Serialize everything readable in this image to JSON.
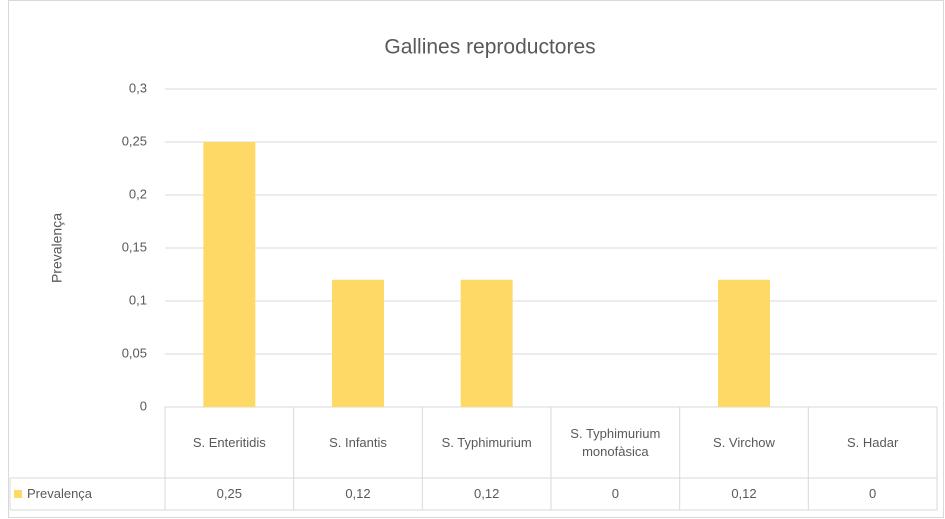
{
  "chart_data": {
    "type": "bar",
    "title": "Gallines reproductores",
    "ylabel": "Prevalença",
    "categories": [
      "S. Enteritidis",
      "S. Infantis",
      "S. Typhimurium",
      "S. Typhimurium monofàsica",
      "S. Virchow",
      "S. Hadar"
    ],
    "series": [
      {
        "name": "Prevalença",
        "color": "#ffd966",
        "values": [
          0.25,
          0.12,
          0.12,
          0,
          0.12,
          0
        ],
        "value_labels": [
          "0,25",
          "0,12",
          "0,12",
          "0",
          "0,12",
          "0"
        ]
      }
    ],
    "ylim": [
      0,
      0.3
    ],
    "yticks": [
      0,
      {
        "value": 0.05,
        "label": "0,05"
      },
      {
        "value": 0.1,
        "label": "0,1"
      },
      {
        "value": 0.15,
        "label": "0,15"
      },
      {
        "value": 0.2,
        "label": "0,2"
      },
      {
        "value": 0.25,
        "label": "0,25"
      },
      {
        "value": 0.3,
        "label": "0,3"
      }
    ],
    "grid": true,
    "data_table": true
  }
}
